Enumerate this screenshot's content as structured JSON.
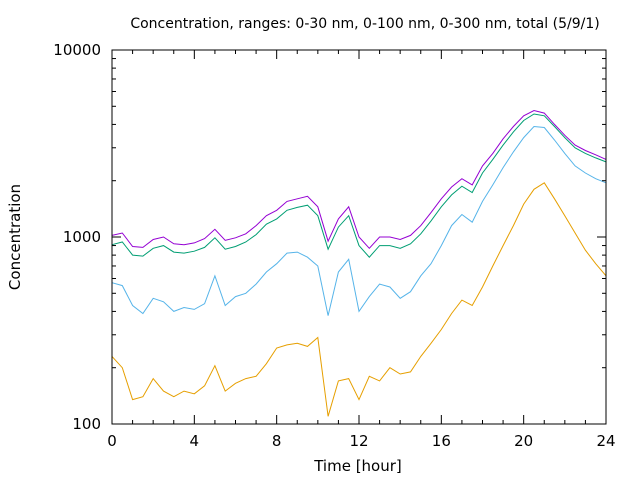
{
  "chart_data": {
    "type": "line",
    "title": "Concentration, ranges: 0-30 nm, 0-100 nm, 0-300 nm, total (5/9/1)",
    "xlabel": "Time [hour]",
    "ylabel": "Concentration",
    "xlim": [
      0,
      24
    ],
    "ylim": [
      100,
      10000
    ],
    "yscale": "log",
    "grid": false,
    "legend": "none",
    "x_ticks": [
      "0",
      "4",
      "8",
      "12",
      "16",
      "20",
      "24"
    ],
    "x_tick_values": [
      0,
      4,
      8,
      12,
      16,
      20,
      24
    ],
    "y_ticks": [
      "100",
      "1000",
      "10000"
    ],
    "y_tick_values": [
      100,
      1000,
      10000
    ],
    "x": [
      0,
      0.5,
      1,
      1.5,
      2,
      2.5,
      3,
      3.5,
      4,
      4.5,
      5,
      5.5,
      6,
      6.5,
      7,
      7.5,
      8,
      8.5,
      9,
      9.5,
      10,
      10.5,
      11,
      11.5,
      12,
      12.5,
      13,
      13.5,
      14,
      14.5,
      15,
      15.5,
      16,
      16.5,
      17,
      17.5,
      18,
      18.5,
      19,
      19.5,
      20,
      20.5,
      21,
      21.5,
      22,
      22.5,
      23,
      23.5,
      24
    ],
    "series": [
      {
        "color": "#9400d3",
        "values": [
          1020,
          1050,
          890,
          880,
          970,
          1000,
          920,
          910,
          930,
          980,
          1100,
          960,
          990,
          1040,
          1150,
          1300,
          1390,
          1550,
          1600,
          1650,
          1450,
          950,
          1250,
          1450,
          1000,
          870,
          1000,
          1000,
          970,
          1020,
          1150,
          1350,
          1600,
          1850,
          2050,
          1900,
          2400,
          2800,
          3350,
          3900,
          4450,
          4750,
          4600,
          4000,
          3500,
          3100,
          2900,
          2750,
          2600
        ]
      },
      {
        "color": "#009e73",
        "values": [
          910,
          940,
          800,
          790,
          870,
          900,
          830,
          820,
          840,
          880,
          990,
          860,
          890,
          940,
          1030,
          1170,
          1250,
          1390,
          1440,
          1480,
          1300,
          860,
          1130,
          1300,
          900,
          780,
          900,
          900,
          870,
          920,
          1040,
          1220,
          1450,
          1680,
          1870,
          1730,
          2200,
          2600,
          3100,
          3650,
          4200,
          4550,
          4450,
          3900,
          3400,
          3000,
          2800,
          2650,
          2520
        ]
      },
      {
        "color": "#56b4e9",
        "values": [
          570,
          550,
          430,
          390,
          470,
          450,
          400,
          420,
          410,
          440,
          620,
          430,
          480,
          500,
          560,
          650,
          720,
          820,
          830,
          780,
          700,
          380,
          650,
          760,
          400,
          480,
          560,
          540,
          470,
          510,
          620,
          720,
          900,
          1150,
          1320,
          1200,
          1550,
          1900,
          2350,
          2850,
          3400,
          3900,
          3850,
          3300,
          2800,
          2400,
          2200,
          2050,
          1950
        ]
      },
      {
        "color": "#e69f00",
        "values": [
          230,
          200,
          135,
          140,
          175,
          150,
          140,
          150,
          145,
          160,
          205,
          150,
          165,
          175,
          180,
          210,
          255,
          265,
          270,
          260,
          290,
          110,
          170,
          175,
          135,
          180,
          170,
          200,
          185,
          190,
          230,
          270,
          320,
          390,
          460,
          430,
          540,
          700,
          900,
          1150,
          1500,
          1800,
          1950,
          1600,
          1300,
          1050,
          850,
          720,
          620
        ]
      }
    ]
  }
}
